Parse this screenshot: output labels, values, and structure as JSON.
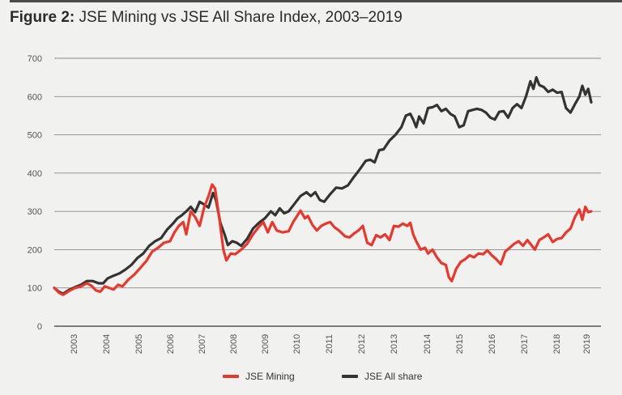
{
  "figure": {
    "label": "Figure 2:",
    "title": "JSE Mining vs JSE All Share Index, 2003–2019"
  },
  "chart_data": {
    "type": "line",
    "title": "JSE Mining vs JSE All Share Index, 2003–2019",
    "xlabel": "",
    "ylabel": "",
    "xlim": [
      2003,
      2019.6
    ],
    "ylim": [
      0,
      700
    ],
    "yticks": [
      0,
      100,
      200,
      300,
      400,
      500,
      600,
      700
    ],
    "xtick_labels": [
      "2003",
      "2004",
      "2005",
      "2006",
      "2007",
      "2008",
      "2009",
      "2010",
      "2011",
      "2012",
      "2013",
      "2014",
      "2015",
      "2016",
      "2017",
      "2018",
      "2019"
    ],
    "grid": "horizontal",
    "legend_position": "bottom-center",
    "series": [
      {
        "name": "JSE Mining",
        "color": "#e8372c",
        "points": [
          [
            2003.0,
            100
          ],
          [
            2003.15,
            88
          ],
          [
            2003.3,
            82
          ],
          [
            2003.5,
            92
          ],
          [
            2003.7,
            100
          ],
          [
            2003.9,
            104
          ],
          [
            2004.1,
            112
          ],
          [
            2004.25,
            106
          ],
          [
            2004.4,
            94
          ],
          [
            2004.55,
            90
          ],
          [
            2004.7,
            104
          ],
          [
            2004.85,
            100
          ],
          [
            2005.0,
            96
          ],
          [
            2005.15,
            108
          ],
          [
            2005.3,
            104
          ],
          [
            2005.5,
            122
          ],
          [
            2005.7,
            135
          ],
          [
            2005.9,
            152
          ],
          [
            2006.1,
            170
          ],
          [
            2006.3,
            195
          ],
          [
            2006.5,
            205
          ],
          [
            2006.7,
            218
          ],
          [
            2006.9,
            222
          ],
          [
            2007.05,
            245
          ],
          [
            2007.2,
            262
          ],
          [
            2007.35,
            272
          ],
          [
            2007.45,
            240
          ],
          [
            2007.6,
            300
          ],
          [
            2007.75,
            285
          ],
          [
            2007.9,
            262
          ],
          [
            2008.05,
            310
          ],
          [
            2008.2,
            340
          ],
          [
            2008.32,
            370
          ],
          [
            2008.42,
            360
          ],
          [
            2008.55,
            290
          ],
          [
            2008.7,
            200
          ],
          [
            2008.8,
            172
          ],
          [
            2008.95,
            190
          ],
          [
            2009.1,
            188
          ],
          [
            2009.3,
            200
          ],
          [
            2009.5,
            215
          ],
          [
            2009.7,
            240
          ],
          [
            2009.9,
            260
          ],
          [
            2010.05,
            272
          ],
          [
            2010.2,
            245
          ],
          [
            2010.35,
            272
          ],
          [
            2010.5,
            250
          ],
          [
            2010.7,
            245
          ],
          [
            2010.9,
            248
          ],
          [
            2011.05,
            272
          ],
          [
            2011.2,
            290
          ],
          [
            2011.3,
            302
          ],
          [
            2011.45,
            282
          ],
          [
            2011.55,
            288
          ],
          [
            2011.7,
            265
          ],
          [
            2011.85,
            250
          ],
          [
            2012.0,
            262
          ],
          [
            2012.15,
            268
          ],
          [
            2012.3,
            272
          ],
          [
            2012.45,
            258
          ],
          [
            2012.6,
            250
          ],
          [
            2012.8,
            235
          ],
          [
            2012.95,
            232
          ],
          [
            2013.1,
            242
          ],
          [
            2013.25,
            250
          ],
          [
            2013.4,
            262
          ],
          [
            2013.55,
            218
          ],
          [
            2013.7,
            212
          ],
          [
            2013.85,
            238
          ],
          [
            2014.0,
            232
          ],
          [
            2014.15,
            240
          ],
          [
            2014.3,
            225
          ],
          [
            2014.45,
            262
          ],
          [
            2014.6,
            260
          ],
          [
            2014.75,
            268
          ],
          [
            2014.9,
            262
          ],
          [
            2015.0,
            270
          ],
          [
            2015.1,
            240
          ],
          [
            2015.2,
            222
          ],
          [
            2015.35,
            200
          ],
          [
            2015.5,
            205
          ],
          [
            2015.6,
            190
          ],
          [
            2015.75,
            200
          ],
          [
            2015.9,
            180
          ],
          [
            2016.05,
            165
          ],
          [
            2016.2,
            160
          ],
          [
            2016.3,
            128
          ],
          [
            2016.4,
            118
          ],
          [
            2016.55,
            150
          ],
          [
            2016.7,
            168
          ],
          [
            2016.85,
            175
          ],
          [
            2017.0,
            185
          ],
          [
            2017.15,
            180
          ],
          [
            2017.3,
            190
          ],
          [
            2017.45,
            188
          ],
          [
            2017.6,
            198
          ],
          [
            2017.75,
            185
          ],
          [
            2017.9,
            175
          ],
          [
            2018.05,
            162
          ],
          [
            2018.2,
            195
          ],
          [
            2018.35,
            205
          ],
          [
            2018.5,
            215
          ],
          [
            2018.65,
            222
          ],
          [
            2018.8,
            210
          ],
          [
            2018.95,
            225
          ],
          [
            2019.05,
            215
          ],
          [
            2019.2,
            200
          ],
          [
            2019.35,
            225
          ],
          [
            2019.5,
            232
          ],
          [
            2019.65,
            240
          ],
          [
            2019.8,
            220
          ],
          [
            2019.95,
            228
          ],
          [
            2020.1,
            230
          ],
          [
            2020.25,
            245
          ],
          [
            2020.4,
            255
          ],
          [
            2020.55,
            285
          ],
          [
            2020.7,
            305
          ],
          [
            2020.8,
            278
          ],
          [
            2020.9,
            312
          ],
          [
            2021.0,
            298
          ],
          [
            2021.1,
            300
          ]
        ]
      },
      {
        "name": "JSE All share",
        "color": "#333333",
        "points": [
          [
            2003.0,
            100
          ],
          [
            2003.15,
            90
          ],
          [
            2003.3,
            85
          ],
          [
            2003.5,
            95
          ],
          [
            2003.7,
            102
          ],
          [
            2003.9,
            108
          ],
          [
            2004.1,
            118
          ],
          [
            2004.3,
            118
          ],
          [
            2004.5,
            112
          ],
          [
            2004.65,
            112
          ],
          [
            2004.8,
            125
          ],
          [
            2005.0,
            132
          ],
          [
            2005.2,
            138
          ],
          [
            2005.4,
            148
          ],
          [
            2005.6,
            160
          ],
          [
            2005.8,
            178
          ],
          [
            2006.0,
            190
          ],
          [
            2006.2,
            210
          ],
          [
            2006.4,
            222
          ],
          [
            2006.6,
            230
          ],
          [
            2006.8,
            252
          ],
          [
            2007.0,
            268
          ],
          [
            2007.15,
            282
          ],
          [
            2007.3,
            290
          ],
          [
            2007.45,
            300
          ],
          [
            2007.6,
            312
          ],
          [
            2007.75,
            298
          ],
          [
            2007.9,
            325
          ],
          [
            2008.05,
            318
          ],
          [
            2008.2,
            310
          ],
          [
            2008.35,
            348
          ],
          [
            2008.45,
            330
          ],
          [
            2008.6,
            270
          ],
          [
            2008.75,
            238
          ],
          [
            2008.85,
            212
          ],
          [
            2009.0,
            222
          ],
          [
            2009.15,
            218
          ],
          [
            2009.3,
            210
          ],
          [
            2009.5,
            228
          ],
          [
            2009.7,
            255
          ],
          [
            2009.9,
            270
          ],
          [
            2010.1,
            282
          ],
          [
            2010.3,
            300
          ],
          [
            2010.45,
            290
          ],
          [
            2010.6,
            308
          ],
          [
            2010.75,
            295
          ],
          [
            2010.9,
            300
          ],
          [
            2011.1,
            320
          ],
          [
            2011.3,
            340
          ],
          [
            2011.5,
            350
          ],
          [
            2011.65,
            340
          ],
          [
            2011.8,
            350
          ],
          [
            2011.95,
            330
          ],
          [
            2012.1,
            325
          ],
          [
            2012.3,
            345
          ],
          [
            2012.5,
            362
          ],
          [
            2012.7,
            360
          ],
          [
            2012.9,
            368
          ],
          [
            2013.1,
            390
          ],
          [
            2013.3,
            410
          ],
          [
            2013.5,
            432
          ],
          [
            2013.65,
            435
          ],
          [
            2013.8,
            428
          ],
          [
            2013.95,
            460
          ],
          [
            2014.1,
            462
          ],
          [
            2014.3,
            485
          ],
          [
            2014.5,
            500
          ],
          [
            2014.7,
            520
          ],
          [
            2014.85,
            550
          ],
          [
            2015.0,
            555
          ],
          [
            2015.1,
            540
          ],
          [
            2015.2,
            520
          ],
          [
            2015.3,
            548
          ],
          [
            2015.45,
            530
          ],
          [
            2015.6,
            570
          ],
          [
            2015.75,
            572
          ],
          [
            2015.9,
            578
          ],
          [
            2016.05,
            562
          ],
          [
            2016.2,
            568
          ],
          [
            2016.35,
            555
          ],
          [
            2016.5,
            548
          ],
          [
            2016.65,
            520
          ],
          [
            2016.8,
            525
          ],
          [
            2016.95,
            562
          ],
          [
            2017.1,
            565
          ],
          [
            2017.25,
            568
          ],
          [
            2017.4,
            565
          ],
          [
            2017.55,
            558
          ],
          [
            2017.7,
            545
          ],
          [
            2017.85,
            540
          ],
          [
            2018.0,
            560
          ],
          [
            2018.15,
            562
          ],
          [
            2018.3,
            545
          ],
          [
            2018.45,
            570
          ],
          [
            2018.6,
            580
          ],
          [
            2018.75,
            570
          ],
          [
            2018.9,
            600
          ],
          [
            2019.05,
            640
          ],
          [
            2019.15,
            620
          ],
          [
            2019.25,
            650
          ],
          [
            2019.35,
            630
          ],
          [
            2019.5,
            625
          ],
          [
            2019.65,
            612
          ],
          [
            2019.8,
            618
          ],
          [
            2019.95,
            610
          ],
          [
            2020.1,
            612
          ],
          [
            2020.25,
            570
          ],
          [
            2020.4,
            558
          ],
          [
            2020.55,
            580
          ],
          [
            2020.7,
            600
          ],
          [
            2020.8,
            628
          ],
          [
            2020.9,
            605
          ],
          [
            2021.0,
            620
          ],
          [
            2021.1,
            585
          ]
        ]
      }
    ]
  },
  "legend": [
    {
      "label": "JSE Mining",
      "color": "#e8372c"
    },
    {
      "label": "JSE All share",
      "color": "#333333"
    }
  ]
}
